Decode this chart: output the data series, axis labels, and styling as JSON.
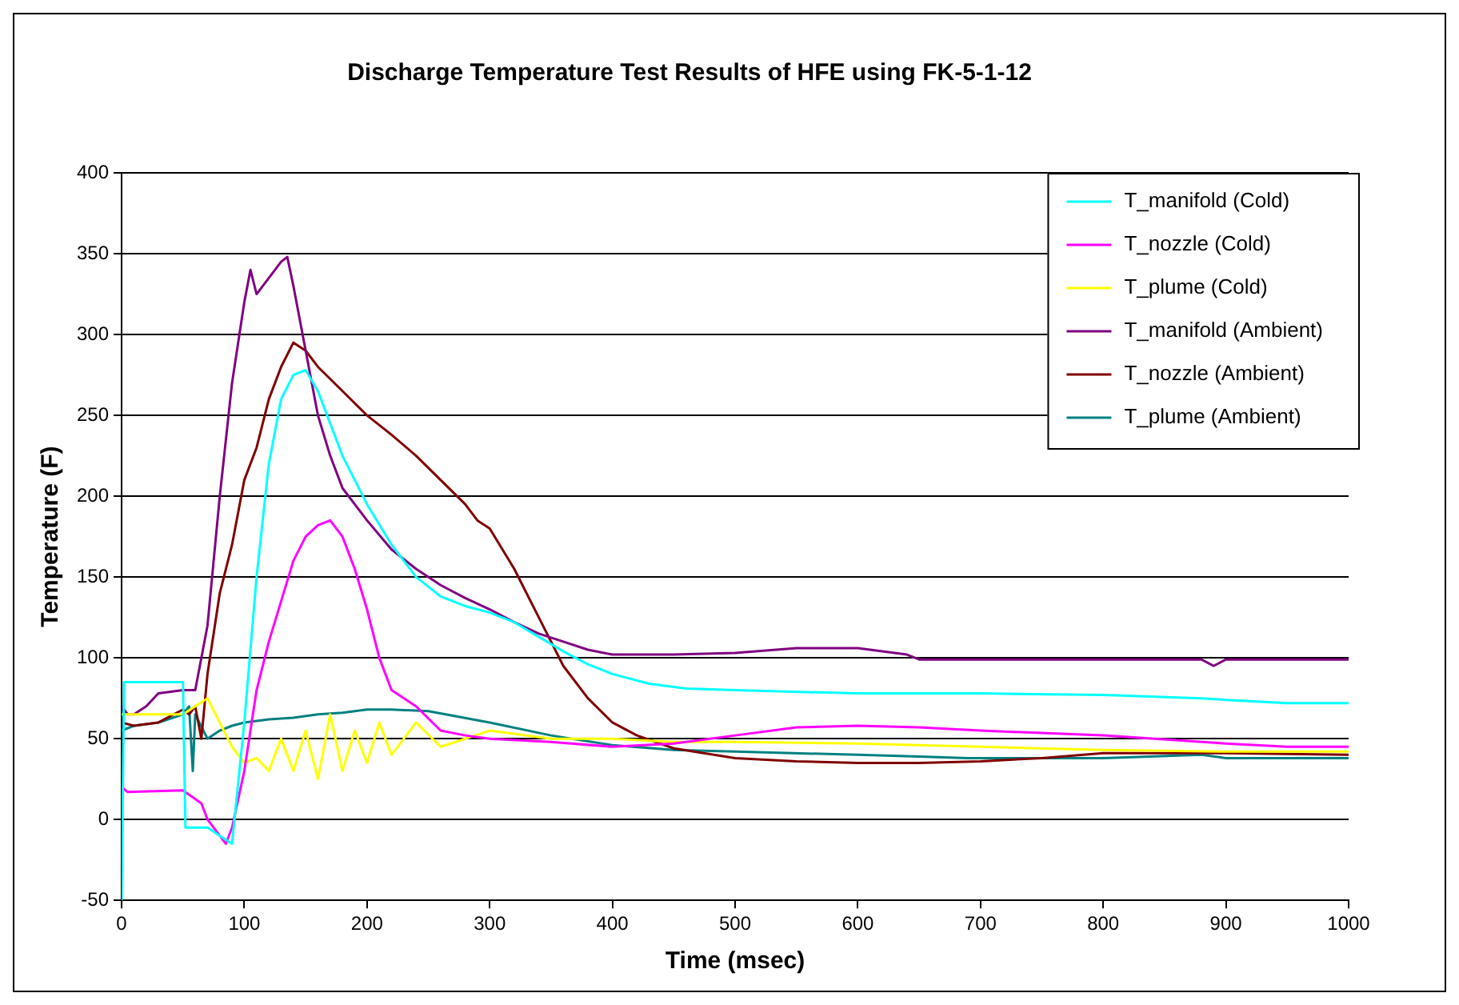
{
  "chart_data": {
    "type": "line",
    "title": "Discharge Temperature Test Results of HFE using FK-5-1-12",
    "xlabel": "Time (msec)",
    "ylabel": "Temperature (F)",
    "xlim": [
      0,
      1000
    ],
    "xticks": [
      0,
      100,
      200,
      300,
      400,
      500,
      600,
      700,
      800,
      900,
      1000
    ],
    "ylim": [
      -50,
      400
    ],
    "yticks": [
      -50,
      0,
      50,
      100,
      150,
      200,
      250,
      300,
      350,
      400
    ],
    "grid": "y",
    "legend": "top right",
    "marker": "none",
    "line_style": "solid",
    "series": [
      {
        "name": "T_manifold (Cold)",
        "color": "#00ffff",
        "x": [
          0,
          2,
          50,
          52,
          70,
          80,
          90,
          100,
          110,
          120,
          130,
          140,
          150,
          160,
          170,
          180,
          200,
          220,
          240,
          260,
          280,
          300,
          320,
          340,
          360,
          380,
          400,
          430,
          460,
          500,
          600,
          700,
          800,
          880,
          900,
          950,
          1000
        ],
        "values": [
          -50,
          85,
          85,
          -5,
          -5,
          -10,
          -15,
          60,
          150,
          220,
          260,
          275,
          278,
          265,
          245,
          225,
          195,
          170,
          150,
          138,
          132,
          128,
          122,
          113,
          104,
          96,
          90,
          84,
          81,
          80,
          78,
          78,
          77,
          75,
          74,
          72,
          72
        ]
      },
      {
        "name": "T_nozzle (Cold)",
        "color": "#ff00ff",
        "x": [
          0,
          5,
          50,
          65,
          70,
          80,
          85,
          90,
          100,
          110,
          120,
          130,
          140,
          150,
          160,
          170,
          180,
          190,
          200,
          210,
          220,
          240,
          260,
          280,
          300,
          350,
          400,
          450,
          500,
          550,
          600,
          650,
          700,
          800,
          900,
          950,
          1000
        ],
        "values": [
          20,
          17,
          18,
          10,
          0,
          -10,
          -15,
          -5,
          30,
          80,
          110,
          135,
          160,
          175,
          182,
          185,
          175,
          155,
          130,
          100,
          80,
          70,
          55,
          52,
          50,
          48,
          45,
          47,
          52,
          57,
          58,
          57,
          55,
          52,
          47,
          45,
          45
        ]
      },
      {
        "name": "T_plume (Cold)",
        "color": "#ffff00",
        "x": [
          0,
          50,
          60,
          70,
          80,
          90,
          100,
          110,
          120,
          130,
          140,
          150,
          160,
          170,
          180,
          190,
          200,
          210,
          220,
          240,
          260,
          300,
          350,
          400,
          450,
          500,
          600,
          700,
          800,
          900,
          1000
        ],
        "values": [
          65,
          65,
          70,
          75,
          60,
          45,
          35,
          38,
          30,
          50,
          30,
          55,
          25,
          65,
          30,
          55,
          35,
          60,
          40,
          60,
          45,
          55,
          50,
          50,
          48,
          48,
          47,
          45,
          43,
          42,
          42
        ]
      },
      {
        "name": "T_manifold (Ambient)",
        "color": "#800080",
        "x": [
          0,
          5,
          10,
          20,
          30,
          50,
          60,
          70,
          80,
          90,
          100,
          105,
          110,
          120,
          130,
          135,
          140,
          150,
          160,
          170,
          180,
          200,
          220,
          240,
          260,
          280,
          300,
          320,
          340,
          360,
          380,
          400,
          450,
          500,
          550,
          600,
          640,
          650,
          700,
          800,
          880,
          890,
          900,
          1000
        ],
        "values": [
          70,
          65,
          65,
          70,
          78,
          80,
          80,
          120,
          200,
          270,
          320,
          340,
          325,
          335,
          345,
          348,
          330,
          290,
          250,
          225,
          205,
          185,
          167,
          155,
          145,
          137,
          130,
          122,
          115,
          110,
          105,
          102,
          102,
          103,
          106,
          106,
          102,
          99,
          99,
          99,
          99,
          95,
          99,
          99
        ]
      },
      {
        "name": "T_nozzle (Ambient)",
        "color": "#800000",
        "x": [
          0,
          10,
          30,
          50,
          55,
          60,
          65,
          70,
          80,
          90,
          100,
          110,
          120,
          130,
          140,
          150,
          160,
          180,
          200,
          220,
          240,
          260,
          280,
          290,
          300,
          320,
          340,
          360,
          380,
          400,
          420,
          450,
          500,
          550,
          600,
          650,
          700,
          750,
          800,
          900,
          1000
        ],
        "values": [
          60,
          58,
          60,
          68,
          65,
          70,
          50,
          90,
          140,
          170,
          210,
          230,
          260,
          280,
          295,
          290,
          280,
          265,
          250,
          238,
          225,
          210,
          195,
          185,
          180,
          155,
          125,
          95,
          75,
          60,
          52,
          44,
          38,
          36,
          35,
          35,
          36,
          38,
          41,
          41,
          40
        ]
      },
      {
        "name": "T_plume (Ambient)",
        "color": "#008080",
        "x": [
          0,
          10,
          30,
          50,
          55,
          58,
          60,
          70,
          80,
          90,
          100,
          120,
          140,
          160,
          180,
          200,
          220,
          250,
          300,
          350,
          400,
          450,
          500,
          600,
          650,
          690,
          700,
          800,
          880,
          900,
          1000
        ],
        "values": [
          55,
          58,
          60,
          65,
          70,
          30,
          65,
          50,
          55,
          58,
          60,
          62,
          63,
          65,
          66,
          68,
          68,
          67,
          60,
          52,
          46,
          43,
          42,
          40,
          39,
          38,
          38,
          38,
          40,
          38,
          38
        ]
      }
    ]
  }
}
